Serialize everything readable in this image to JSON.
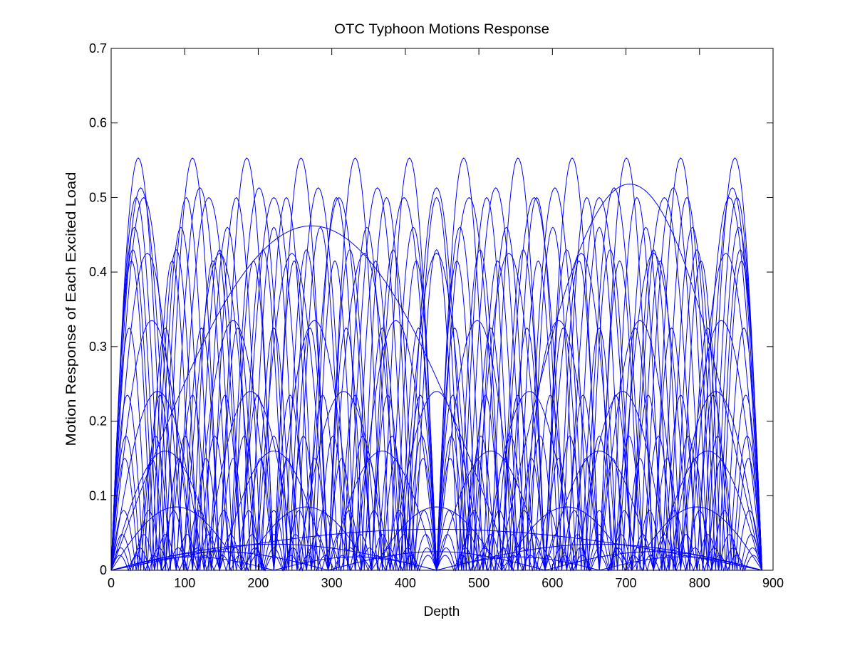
{
  "chart_data": {
    "type": "line",
    "title": "OTC Typhoon Motions Response",
    "xlabel": "Depth",
    "ylabel": "Motion Response of Each Excited Load",
    "xlim": [
      0,
      900
    ],
    "ylim": [
      0,
      0.7
    ],
    "xticks": [
      0,
      100,
      200,
      300,
      400,
      500,
      600,
      700,
      800,
      900
    ],
    "yticks": [
      0,
      0.1,
      0.2,
      0.3,
      0.4,
      0.5,
      0.6,
      0.7
    ],
    "xtick_labels": [
      "0",
      "100",
      "200",
      "300",
      "400",
      "500",
      "600",
      "700",
      "800",
      "900"
    ],
    "ytick_labels": [
      "0",
      "0.1",
      "0.2",
      "0.3",
      "0.4",
      "0.5",
      "0.6",
      "0.7"
    ],
    "grid": false,
    "line_color": "#0000ff",
    "series_description": "Each series is |amp * sin(n*pi*(depth-start)/(end-start))| over [start,end]",
    "series": [
      {
        "n": 1,
        "amp": 0.462,
        "start": 0,
        "end": 545
      },
      {
        "n": 1,
        "amp": 0.518,
        "start": 525,
        "end": 885
      },
      {
        "n": 1,
        "amp": 0.055,
        "start": 0,
        "end": 885
      },
      {
        "n": 2,
        "amp": 0.035,
        "start": 0,
        "end": 885
      },
      {
        "n": 3,
        "amp": 0.025,
        "start": 0,
        "end": 885
      },
      {
        "n": 4,
        "amp": 0.018,
        "start": 0,
        "end": 885
      },
      {
        "n": 5,
        "amp": 0.085,
        "start": 0,
        "end": 885
      },
      {
        "n": 6,
        "amp": 0.16,
        "start": 0,
        "end": 885
      },
      {
        "n": 7,
        "amp": 0.24,
        "start": 0,
        "end": 885
      },
      {
        "n": 8,
        "amp": 0.335,
        "start": 0,
        "end": 885
      },
      {
        "n": 9,
        "amp": 0.425,
        "start": 0,
        "end": 885
      },
      {
        "n": 10,
        "amp": 0.5,
        "start": 0,
        "end": 885
      },
      {
        "n": 11,
        "amp": 0.513,
        "start": 0,
        "end": 885
      },
      {
        "n": 12,
        "amp": 0.553,
        "start": 0,
        "end": 885
      },
      {
        "n": 13,
        "amp": 0.5,
        "start": 0,
        "end": 885
      },
      {
        "n": 14,
        "amp": 0.46,
        "start": 0,
        "end": 885
      },
      {
        "n": 15,
        "amp": 0.43,
        "start": 0,
        "end": 885
      },
      {
        "n": 16,
        "amp": 0.415,
        "start": 0,
        "end": 885
      },
      {
        "n": 18,
        "amp": 0.325,
        "start": 0,
        "end": 885
      },
      {
        "n": 20,
        "amp": 0.235,
        "start": 0,
        "end": 885
      },
      {
        "n": 22,
        "amp": 0.18,
        "start": 0,
        "end": 885
      },
      {
        "n": 24,
        "amp": 0.15,
        "start": 0,
        "end": 885
      },
      {
        "n": 26,
        "amp": 0.08,
        "start": 0,
        "end": 885
      },
      {
        "n": 30,
        "amp": 0.048,
        "start": 0,
        "end": 885
      },
      {
        "n": 34,
        "amp": 0.03,
        "start": 0,
        "end": 885
      },
      {
        "n": 38,
        "amp": 0.02,
        "start": 0,
        "end": 885
      }
    ]
  }
}
